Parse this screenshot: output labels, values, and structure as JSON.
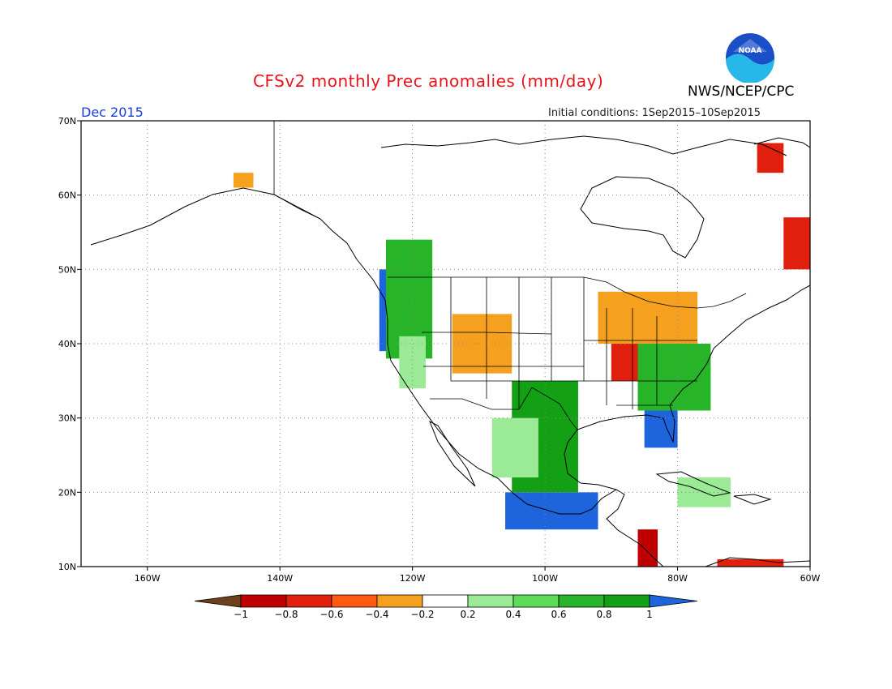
{
  "title": "CFSv2 monthly Prec anomalies (mm/day)",
  "agency": "NWS/NCEP/CPC",
  "logo_text": "NOAA",
  "valid_month": "Dec 2015",
  "initial_conditions": "Initial conditions: 1Sep2015–10Sep2015",
  "map": {
    "lon_range": [
      -170,
      -60
    ],
    "lat_range": [
      10,
      70
    ],
    "lon_ticks": [
      {
        "value": -160,
        "label": "160W"
      },
      {
        "value": -140,
        "label": "140W"
      },
      {
        "value": -120,
        "label": "120W"
      },
      {
        "value": -100,
        "label": "100W"
      },
      {
        "value": -80,
        "label": "80W"
      },
      {
        "value": -60,
        "label": "60W"
      }
    ],
    "lat_ticks": [
      {
        "value": 10,
        "label": "10N"
      },
      {
        "value": 20,
        "label": "20N"
      },
      {
        "value": 30,
        "label": "30N"
      },
      {
        "value": 40,
        "label": "40N"
      },
      {
        "value": 50,
        "label": "50N"
      },
      {
        "value": 60,
        "label": "60N"
      },
      {
        "value": 70,
        "label": "70N"
      }
    ],
    "grid": "dotted"
  },
  "colorbar": {
    "levels": [
      "−1",
      "−0.8",
      "−0.6",
      "−0.4",
      "−0.2",
      "0.2",
      "0.4",
      "0.6",
      "0.8",
      "1"
    ],
    "colors": [
      "#6e3f1c",
      "#c00000",
      "#e0200c",
      "#ff5a14",
      "#f5a01e",
      "#ffffff",
      "#9beb96",
      "#5ddc5a",
      "#28b428",
      "#14a014",
      "#1e64dc"
    ]
  },
  "anomaly_regions": [
    {
      "name": "pacific-northwest-coast",
      "color": "#1e64dc",
      "lon": [
        -125,
        -122
      ],
      "lat": [
        39,
        50
      ]
    },
    {
      "name": "pacific-northwest-green",
      "color": "#28b428",
      "lon": [
        -124,
        -117
      ],
      "lat": [
        38,
        54
      ]
    },
    {
      "name": "california-light",
      "color": "#9beb96",
      "lon": [
        -122,
        -118
      ],
      "lat": [
        34,
        41
      ]
    },
    {
      "name": "wyoming-orange",
      "color": "#f5a01e",
      "lon": [
        -114,
        -105
      ],
      "lat": [
        36,
        44
      ]
    },
    {
      "name": "great-lakes-red",
      "color": "#e0200c",
      "lon": [
        -90,
        -80
      ],
      "lat": [
        35,
        46
      ]
    },
    {
      "name": "great-lakes-orange",
      "color": "#f5a01e",
      "lon": [
        -92,
        -77
      ],
      "lat": [
        40,
        47
      ]
    },
    {
      "name": "southeast-blue",
      "color": "#1e64dc",
      "lon": [
        -85,
        -80
      ],
      "lat": [
        26,
        32
      ]
    },
    {
      "name": "southeast-green",
      "color": "#28b428",
      "lon": [
        -86,
        -75
      ],
      "lat": [
        31,
        40
      ]
    },
    {
      "name": "texas-green",
      "color": "#14a014",
      "lon": [
        -105,
        -95
      ],
      "lat": [
        20,
        35
      ]
    },
    {
      "name": "mexico-light",
      "color": "#9beb96",
      "lon": [
        -108,
        -101
      ],
      "lat": [
        22,
        30
      ]
    },
    {
      "name": "mexico-pacific-blue",
      "color": "#1e64dc",
      "lon": [
        -106,
        -92
      ],
      "lat": [
        15,
        20
      ]
    },
    {
      "name": "central-america-red",
      "color": "#c00000",
      "lon": [
        -86,
        -83
      ],
      "lat": [
        10,
        15
      ]
    },
    {
      "name": "alaska-orange",
      "color": "#f5a01e",
      "lon": [
        -147,
        -144
      ],
      "lat": [
        61,
        63
      ]
    },
    {
      "name": "labrador-red",
      "color": "#e0200c",
      "lon": [
        -64,
        -60
      ],
      "lat": [
        50,
        57
      ]
    },
    {
      "name": "baffin-red",
      "color": "#e0200c",
      "lon": [
        -68,
        -64
      ],
      "lat": [
        63,
        67
      ]
    },
    {
      "name": "caribbean-light",
      "color": "#9beb96",
      "lon": [
        -80,
        -72
      ],
      "lat": [
        18,
        22
      ]
    },
    {
      "name": "venezuela-red",
      "color": "#e0200c",
      "lon": [
        -74,
        -64
      ],
      "lat": [
        10,
        11
      ]
    }
  ]
}
